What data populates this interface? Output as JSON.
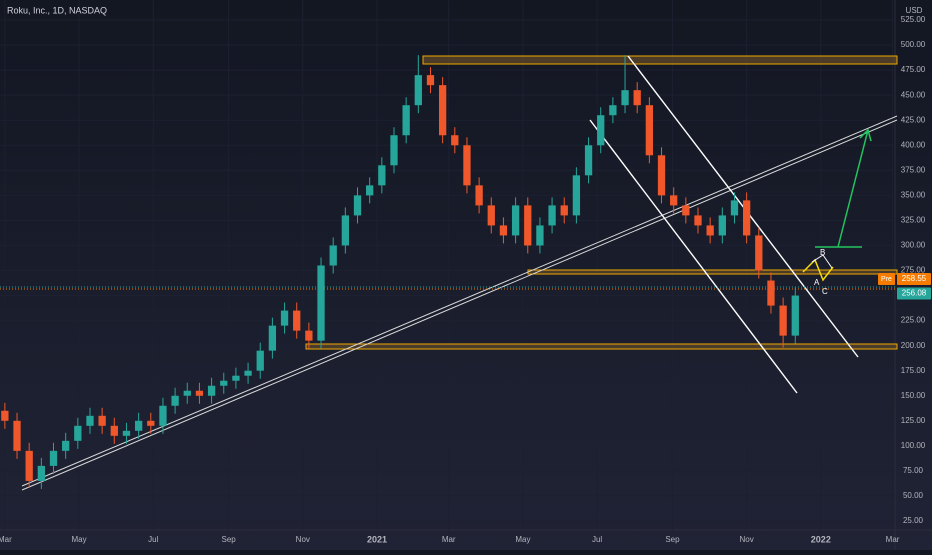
{
  "chart_data": {
    "type": "candlestick",
    "title": "Roku, Inc., 1D, NASDAQ",
    "currency": "USD",
    "up_color": "#26a69a",
    "down_color": "#f0582b",
    "xlim": [
      -4,
      732
    ],
    "ylim": [
      16,
      545
    ],
    "xticks": [
      {
        "value": 0,
        "label": "Mar"
      },
      {
        "value": 61,
        "label": "May"
      },
      {
        "value": 122,
        "label": "Jul"
      },
      {
        "value": 184,
        "label": "Sep"
      },
      {
        "value": 245,
        "label": "Nov"
      },
      {
        "value": 306,
        "label": "2021"
      },
      {
        "value": 365,
        "label": "Mar"
      },
      {
        "value": 426,
        "label": "May"
      },
      {
        "value": 487,
        "label": "Jul"
      },
      {
        "value": 549,
        "label": "Sep"
      },
      {
        "value": 610,
        "label": "Nov"
      },
      {
        "value": 671,
        "label": "2022"
      },
      {
        "value": 730,
        "label": "Mar"
      }
    ],
    "yticks": [
      {
        "value": 25,
        "label": "25.00"
      },
      {
        "value": 50,
        "label": "50.00"
      },
      {
        "value": 75,
        "label": "75.00"
      },
      {
        "value": 100,
        "label": "100.00"
      },
      {
        "value": 125,
        "label": "125.00"
      },
      {
        "value": 150,
        "label": "150.00"
      },
      {
        "value": 175,
        "label": "175.00"
      },
      {
        "value": 200,
        "label": "200.00"
      },
      {
        "value": 225,
        "label": "225.00"
      },
      {
        "value": 250,
        "label": "250.00"
      },
      {
        "value": 275,
        "label": "275.00"
      },
      {
        "value": 300,
        "label": "300.00"
      },
      {
        "value": 325,
        "label": "325.00"
      },
      {
        "value": 350,
        "label": "350.00"
      },
      {
        "value": 375,
        "label": "375.00"
      },
      {
        "value": 400,
        "label": "400.00"
      },
      {
        "value": 425,
        "label": "425.00"
      },
      {
        "value": 450,
        "label": "450.00"
      },
      {
        "value": 475,
        "label": "475.00"
      },
      {
        "value": 500,
        "label": "500.00"
      },
      {
        "value": 525,
        "label": "525.00"
      }
    ],
    "x": [
      0,
      10,
      20,
      30,
      40,
      50,
      60,
      70,
      80,
      90,
      100,
      110,
      120,
      130,
      140,
      150,
      160,
      170,
      180,
      190,
      200,
      210,
      220,
      230,
      240,
      250,
      260,
      270,
      280,
      290,
      300,
      310,
      320,
      330,
      340,
      350,
      360,
      370,
      380,
      390,
      400,
      410,
      420,
      430,
      440,
      450,
      460,
      470,
      480,
      490,
      500,
      510,
      520,
      530,
      540,
      550,
      560,
      570,
      580,
      590,
      600,
      610,
      620,
      630,
      640,
      650
    ],
    "open": [
      135,
      125,
      95,
      65,
      80,
      95,
      105,
      120,
      130,
      120,
      110,
      115,
      125,
      120,
      140,
      150,
      155,
      150,
      160,
      165,
      170,
      175,
      195,
      220,
      235,
      215,
      205,
      280,
      300,
      330,
      350,
      360,
      380,
      410,
      440,
      470,
      460,
      410,
      400,
      360,
      340,
      320,
      310,
      340,
      300,
      320,
      340,
      330,
      370,
      400,
      430,
      440,
      455,
      440,
      390,
      350,
      340,
      330,
      320,
      310,
      330,
      345,
      310,
      265,
      240,
      210
    ],
    "high": [
      143,
      133,
      103,
      88,
      103,
      113,
      128,
      138,
      138,
      128,
      123,
      133,
      133,
      148,
      158,
      163,
      163,
      168,
      173,
      178,
      183,
      203,
      228,
      243,
      243,
      223,
      288,
      308,
      338,
      358,
      368,
      388,
      418,
      448,
      490,
      478,
      468,
      418,
      408,
      368,
      348,
      328,
      348,
      348,
      328,
      348,
      348,
      378,
      408,
      438,
      448,
      490,
      463,
      448,
      398,
      358,
      348,
      338,
      328,
      338,
      353,
      353,
      318,
      273,
      248,
      258
    ],
    "low": [
      117,
      87,
      58,
      57,
      72,
      87,
      97,
      112,
      112,
      102,
      102,
      107,
      112,
      112,
      132,
      142,
      142,
      142,
      152,
      157,
      162,
      167,
      187,
      212,
      207,
      197,
      197,
      272,
      292,
      322,
      342,
      352,
      372,
      402,
      432,
      452,
      402,
      392,
      352,
      332,
      312,
      302,
      302,
      292,
      292,
      312,
      322,
      322,
      362,
      392,
      422,
      432,
      432,
      382,
      342,
      332,
      322,
      312,
      302,
      302,
      322,
      302,
      267,
      232,
      198,
      202
    ],
    "close": [
      125,
      95,
      65,
      80,
      95,
      105,
      120,
      130,
      120,
      110,
      115,
      125,
      120,
      140,
      150,
      155,
      150,
      160,
      165,
      170,
      175,
      195,
      220,
      235,
      215,
      205,
      280,
      300,
      330,
      350,
      360,
      380,
      410,
      440,
      470,
      460,
      410,
      400,
      360,
      340,
      320,
      310,
      340,
      300,
      320,
      340,
      330,
      370,
      400,
      430,
      440,
      455,
      440,
      390,
      350,
      340,
      330,
      320,
      310,
      330,
      345,
      310,
      275,
      240,
      210,
      250
    ],
    "price_labels": [
      {
        "value": 258.55,
        "label": "258.55",
        "tag": "Pre",
        "color": "#f57c00"
      },
      {
        "value": 256.08,
        "label": "256.08",
        "color": "#26a69a"
      }
    ],
    "annotations": [
      "A",
      "B",
      "C"
    ]
  }
}
